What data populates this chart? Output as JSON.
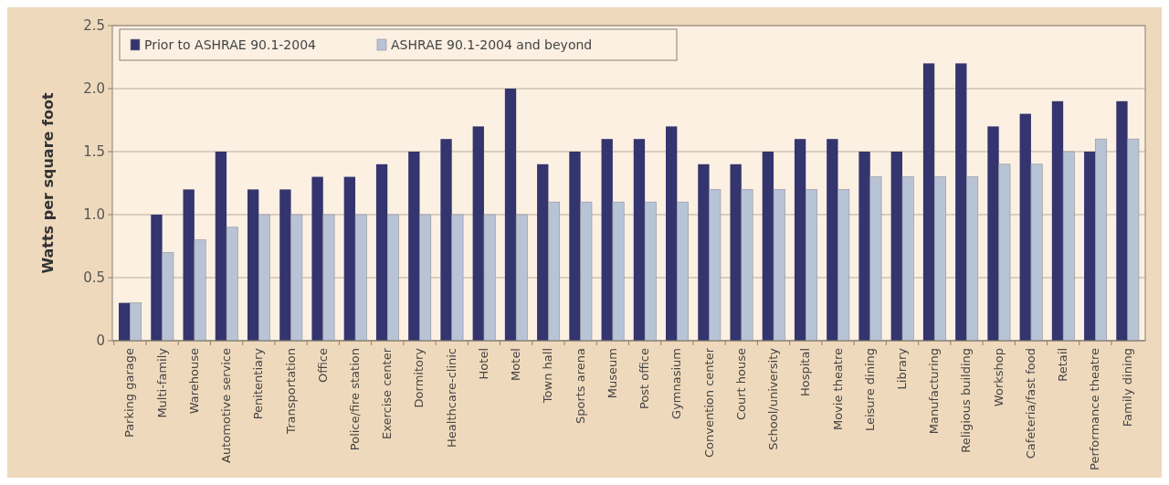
{
  "chart_data": {
    "type": "bar",
    "ylabel": "Watts per square foot",
    "categories": [
      "Parking garage",
      "Multi-family",
      "Warehouse",
      "Automotive service",
      "Penitentiary",
      "Transportation",
      "Office",
      "Police/fire station",
      "Exercise center",
      "Dormitory",
      "Healthcare-clinic",
      "Hotel",
      "Motel",
      "Town hall",
      "Sports arena",
      "Museum",
      "Post office",
      "Gymnasium",
      "Convention center",
      "Court house",
      "School/university",
      "Hospital",
      "Movie theatre",
      "Leisure dining",
      "Library",
      "Manufacturing",
      "Religious building",
      "Workshop",
      "Cafeteria/fast food",
      "Retail",
      "Performance theatre",
      "Family dining"
    ],
    "series": [
      {
        "name": "Prior to ASHRAE 90.1-2004",
        "color": "#34346e",
        "values": [
          0.3,
          1.0,
          1.2,
          1.5,
          1.2,
          1.2,
          1.3,
          1.3,
          1.4,
          1.5,
          1.6,
          1.7,
          2.0,
          1.4,
          1.5,
          1.6,
          1.6,
          1.7,
          1.4,
          1.4,
          1.5,
          1.6,
          1.6,
          1.5,
          1.5,
          2.2,
          2.2,
          1.7,
          1.8,
          1.9,
          1.5,
          1.9
        ]
      },
      {
        "name": "ASHRAE 90.1-2004 and beyond",
        "color": "#b8c4d6",
        "values": [
          0.3,
          0.7,
          0.8,
          0.9,
          1.0,
          1.0,
          1.0,
          1.0,
          1.0,
          1.0,
          1.0,
          1.0,
          1.0,
          1.1,
          1.1,
          1.1,
          1.1,
          1.1,
          1.2,
          1.2,
          1.2,
          1.2,
          1.2,
          1.3,
          1.3,
          1.3,
          1.3,
          1.4,
          1.4,
          1.5,
          1.6,
          1.6
        ]
      }
    ],
    "ylim": [
      0,
      2.5
    ],
    "yticks": [
      {
        "value": 0,
        "label": "0"
      },
      {
        "value": 0.5,
        "label": "0.5"
      },
      {
        "value": 1,
        "label": "1.0"
      },
      {
        "value": 1.5,
        "label": "1.5"
      },
      {
        "value": 2,
        "label": "2.0"
      },
      {
        "value": 2.5,
        "label": "2.5"
      }
    ],
    "grid": "y",
    "legend": "top left"
  }
}
